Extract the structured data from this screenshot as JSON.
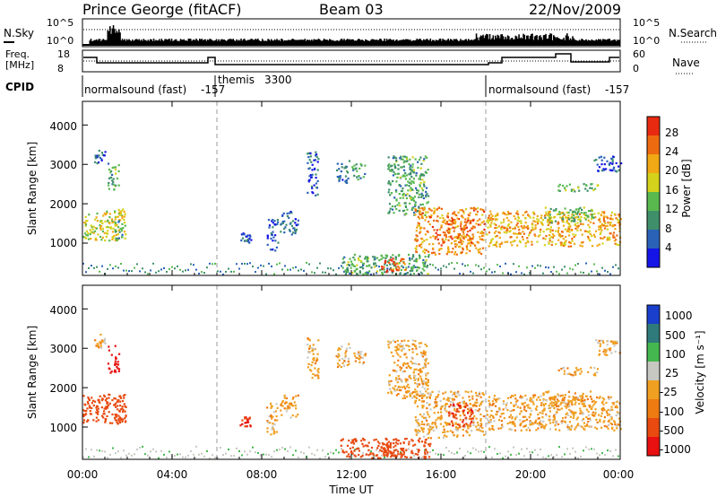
{
  "header": {
    "station": "Prince George (fitACF)",
    "beam": "Beam 03",
    "date": "22/Nov/2009"
  },
  "nsky_panel": {
    "left_label": "N.Sky",
    "right_label": "N.Search",
    "left_ticks": [
      "10^5",
      "10^0"
    ],
    "right_ticks": [
      "10^5",
      "10^0"
    ]
  },
  "freq_panel": {
    "left_label_1": "Freq.",
    "left_label_2": "[MHz]",
    "right_label": "Nave",
    "left_ticks": [
      "18",
      "8"
    ],
    "right_ticks": [
      "60",
      "0"
    ]
  },
  "cpid_panel": {
    "label": "CPID",
    "programs": [
      {
        "name": "normalsound (fast)",
        "id": "-157",
        "start_hour": 0
      },
      {
        "name": "themis",
        "id": "3300",
        "start_hour": 6
      },
      {
        "name": "normalsound (fast)",
        "id": "-157",
        "start_hour": 18
      }
    ]
  },
  "power_panel": {
    "ylabel": "Slant Range [km]",
    "yticks": [
      "1000",
      "2000",
      "3000",
      "4000"
    ],
    "colorbar_label": "Power [dB]",
    "colorbar_ticks": [
      "4",
      "8",
      "12",
      "16",
      "20",
      "24",
      "28"
    ],
    "colors": [
      "#1515e8",
      "#2a62b8",
      "#3f8f6a",
      "#59b94f",
      "#d4d21a",
      "#f0a814",
      "#ee6a10",
      "#e82a10"
    ]
  },
  "velocity_panel": {
    "ylabel": "Slant Range [km]",
    "yticks": [
      "1000",
      "2000",
      "3000",
      "4000"
    ],
    "colorbar_label": "Velocity [m s⁻¹]",
    "colorbar_ticks": [
      "1000",
      "500",
      "100",
      "25",
      "-25",
      "-100",
      "-500",
      "-1000"
    ],
    "colors": [
      "#1a3fcc",
      "#2f7a7a",
      "#44b84e",
      "#c8c8c2",
      "#f0a020",
      "#ee7a12",
      "#e84a10",
      "#e81010"
    ]
  },
  "xaxis": {
    "label": "Time UT",
    "ticks": [
      "00:00",
      "04:00",
      "08:00",
      "12:00",
      "16:00",
      "20:00",
      "00:00"
    ]
  },
  "chart_data": {
    "type": "heatmap",
    "x_unit": "hour UT",
    "xlim": [
      0,
      24
    ],
    "ylim_km": [
      180,
      4600
    ],
    "mode_change_hours": [
      6,
      18
    ],
    "scatter_regions": [
      {
        "t0": 0.0,
        "t1": 1.9,
        "r0": 1050,
        "r1": 1850,
        "power_db": 18,
        "velocity": -250
      },
      {
        "t0": 1.1,
        "t1": 1.6,
        "r0": 2350,
        "r1": 3050,
        "power_db": 12,
        "velocity": -800
      },
      {
        "t0": 1.4,
        "t1": 1.9,
        "r0": 1100,
        "r1": 1600,
        "power_db": 12,
        "velocity": -200
      },
      {
        "t0": 0.5,
        "t1": 1.0,
        "r0": 3000,
        "r1": 3350,
        "power_db": 5,
        "velocity": 0
      },
      {
        "t0": 7.0,
        "t1": 7.5,
        "r0": 1000,
        "r1": 1250,
        "power_db": 5,
        "velocity": -300
      },
      {
        "t0": 8.2,
        "t1": 8.7,
        "r0": 800,
        "r1": 1600,
        "power_db": 5,
        "velocity": 0
      },
      {
        "t0": 8.8,
        "t1": 9.6,
        "r0": 1200,
        "r1": 1800,
        "power_db": 6,
        "velocity": 0
      },
      {
        "t0": 10.0,
        "t1": 10.5,
        "r0": 2200,
        "r1": 3300,
        "power_db": 6,
        "velocity": 0
      },
      {
        "t0": 11.3,
        "t1": 11.9,
        "r0": 2500,
        "r1": 3100,
        "power_db": 8,
        "velocity": 0
      },
      {
        "t0": 12.0,
        "t1": 12.6,
        "r0": 2600,
        "r1": 3000,
        "power_db": 10,
        "velocity": 0
      },
      {
        "t0": 11.5,
        "t1": 15.5,
        "r0": 200,
        "r1": 700,
        "power_db": 12,
        "velocity": -150
      },
      {
        "t0": 13.3,
        "t1": 14.4,
        "r0": 250,
        "r1": 600,
        "power_db": 28,
        "velocity": -200
      },
      {
        "t0": 13.6,
        "t1": 15.4,
        "r0": 1700,
        "r1": 3200,
        "power_db": 12,
        "velocity": 0
      },
      {
        "t0": 14.8,
        "t1": 17.9,
        "r0": 700,
        "r1": 1900,
        "power_db": 24,
        "velocity": 0
      },
      {
        "t0": 16.3,
        "t1": 17.4,
        "r0": 1000,
        "r1": 1600,
        "power_db": 26,
        "velocity": -300
      },
      {
        "t0": 18.0,
        "t1": 24.0,
        "r0": 900,
        "r1": 1800,
        "power_db": 22,
        "velocity": 0
      },
      {
        "t0": 20.5,
        "t1": 22.8,
        "r0": 1500,
        "r1": 1900,
        "power_db": 14,
        "velocity": 0
      },
      {
        "t0": 21.2,
        "t1": 23.0,
        "r0": 2300,
        "r1": 2500,
        "power_db": 14,
        "velocity": 0
      },
      {
        "t0": 22.8,
        "t1": 24.0,
        "r0": 2800,
        "r1": 3200,
        "power_db": 5,
        "velocity": 0
      }
    ]
  }
}
